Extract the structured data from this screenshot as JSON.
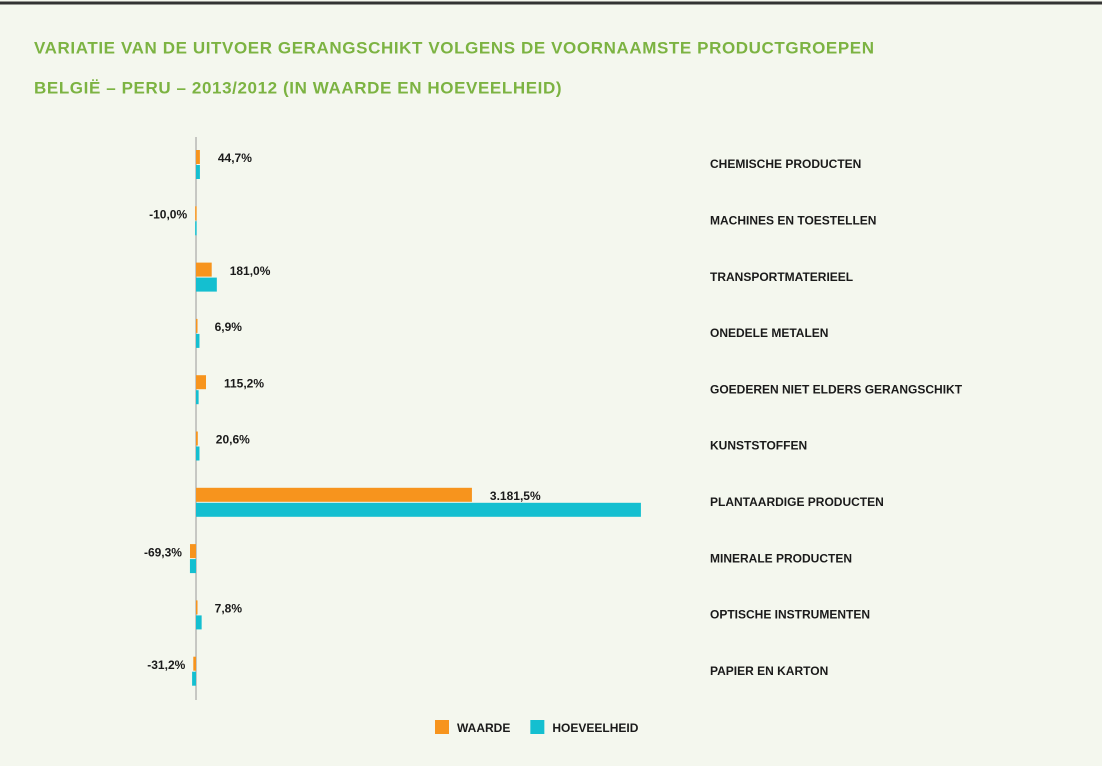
{
  "chart_data": {
    "type": "hbar",
    "title": "VARIATIE VAN DE UITVOER GERANGSCHIKT VOLGENS DE VOORNAAMSTE PRODUCTGROEPEN",
    "subtitle": "BELGIË – PERU – 2013/2012 (IN WAARDE EN HOEVEELHEID)",
    "categories": [
      "CHEMISCHE PRODUCTEN",
      "MACHINES EN TOESTELLEN",
      "TRANSPORTMATERIEEL",
      "ONEDELE METALEN",
      "GOEDEREN NIET ELDERS GERANGSCHIKT",
      "KUNSTSTOFFEN",
      "PLANTAARDIGE PRODUCTEN",
      "MINERALE PRODUCTEN",
      "OPTISCHE INSTRUMENTEN",
      "PAPIER EN KARTON"
    ],
    "series": [
      {
        "name": "WAARDE",
        "color": "#f7941d",
        "values": [
          44.7,
          -10.0,
          181.0,
          6.9,
          115.2,
          20.6,
          3181.5,
          -69.3,
          7.8,
          -31.2
        ],
        "value_labels": [
          "44,7%",
          "-10,0%",
          "181,0%",
          "6,9%",
          "115,2%",
          "20,6%",
          "3.181,5%",
          "-69,3%",
          "7,8%",
          "-31,2%"
        ]
      },
      {
        "name": "HOEVEELHEID",
        "color": "#14bfd0",
        "values": [
          45,
          -10,
          240,
          40,
          30,
          40,
          5130,
          -70,
          65,
          -45
        ]
      }
    ],
    "xlim": [
      -700,
      5500
    ]
  }
}
